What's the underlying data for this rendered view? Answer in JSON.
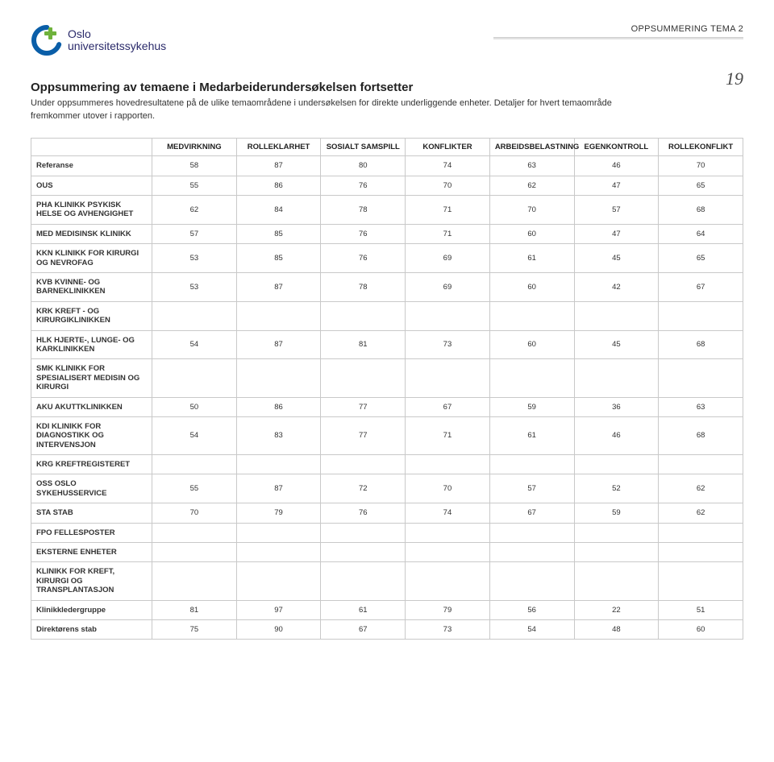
{
  "brand": {
    "line1": "Oslo",
    "line2": "universitetssykehus",
    "accent_color": "#0a5ea8",
    "plus_color": "#6fb23c",
    "text_color": "#2a2a6a"
  },
  "header": {
    "section_label": "OPPSUMMERING TEMA 2",
    "page_number": "19"
  },
  "title": "Oppsummering av temaene i Medarbeiderundersøkelsen fortsetter",
  "intro": "Under oppsummeres hovedresultatene på de ulike temaområdene i undersøkelsen for direkte underliggende enheter. Detaljer for hvert temaområde fremkommer utover i rapporten.",
  "table": {
    "border_color": "#c9c9c9",
    "columns": [
      "MEDVIRKNING",
      "ROLLEKLARHET",
      "SOSIALT SAMSPILL",
      "KONFLIKTER",
      "ARBEIDSBELASTNING",
      "EGENKONTROLL",
      "ROLLEKONFLIKT"
    ],
    "rows": [
      {
        "label": "Referanse",
        "values": [
          58,
          87,
          80,
          74,
          63,
          46,
          70
        ]
      },
      {
        "label": "OUS",
        "values": [
          55,
          86,
          76,
          70,
          62,
          47,
          65
        ]
      },
      {
        "label": "PHA KLINIKK PSYKISK HELSE OG AVHENGIGHET",
        "values": [
          62,
          84,
          78,
          71,
          70,
          57,
          68
        ]
      },
      {
        "label": "MED MEDISINSK KLINIKK",
        "values": [
          57,
          85,
          76,
          71,
          60,
          47,
          64
        ]
      },
      {
        "label": "KKN KLINIKK FOR KIRURGI OG NEVROFAG",
        "values": [
          53,
          85,
          76,
          69,
          61,
          45,
          65
        ]
      },
      {
        "label": "KVB KVINNE- OG BARNEKLINIKKEN",
        "values": [
          53,
          87,
          78,
          69,
          60,
          42,
          67
        ]
      },
      {
        "label": "KRK KREFT - OG KIRURGIKLINIKKEN",
        "values": [
          "",
          "",
          "",
          "",
          "",
          "",
          ""
        ]
      },
      {
        "label": "HLK HJERTE-, LUNGE- OG KARKLINIKKEN",
        "values": [
          54,
          87,
          81,
          73,
          60,
          45,
          68
        ]
      },
      {
        "label": "SMK KLINIKK FOR SPESIALISERT MEDISIN OG KIRURGI",
        "values": [
          "",
          "",
          "",
          "",
          "",
          "",
          ""
        ]
      },
      {
        "label": "AKU AKUTTKLINIKKEN",
        "values": [
          50,
          86,
          77,
          67,
          59,
          36,
          63
        ]
      },
      {
        "label": "KDI KLINIKK FOR DIAGNOSTIKK OG INTERVENSJON",
        "values": [
          54,
          83,
          77,
          71,
          61,
          46,
          68
        ]
      },
      {
        "label": "KRG KREFTREGISTERET",
        "values": [
          "",
          "",
          "",
          "",
          "",
          "",
          ""
        ]
      },
      {
        "label": "OSS OSLO SYKEHUSSERVICE",
        "values": [
          55,
          87,
          72,
          70,
          57,
          52,
          62
        ]
      },
      {
        "label": "STA STAB",
        "values": [
          70,
          79,
          76,
          74,
          67,
          59,
          62
        ]
      },
      {
        "label": "FPO FELLESPOSTER",
        "values": [
          "",
          "",
          "",
          "",
          "",
          "",
          ""
        ]
      },
      {
        "label": "EKSTERNE ENHETER",
        "values": [
          "",
          "",
          "",
          "",
          "",
          "",
          ""
        ]
      },
      {
        "label": "KLINIKK FOR KREFT, KIRURGI OG TRANSPLANTASJON",
        "values": [
          "",
          "",
          "",
          "",
          "",
          "",
          ""
        ]
      },
      {
        "label": "Klinikkledergruppe",
        "values": [
          81,
          97,
          61,
          79,
          56,
          22,
          51
        ]
      },
      {
        "label": "Direktørens stab",
        "values": [
          75,
          90,
          67,
          73,
          54,
          48,
          60
        ]
      }
    ]
  }
}
